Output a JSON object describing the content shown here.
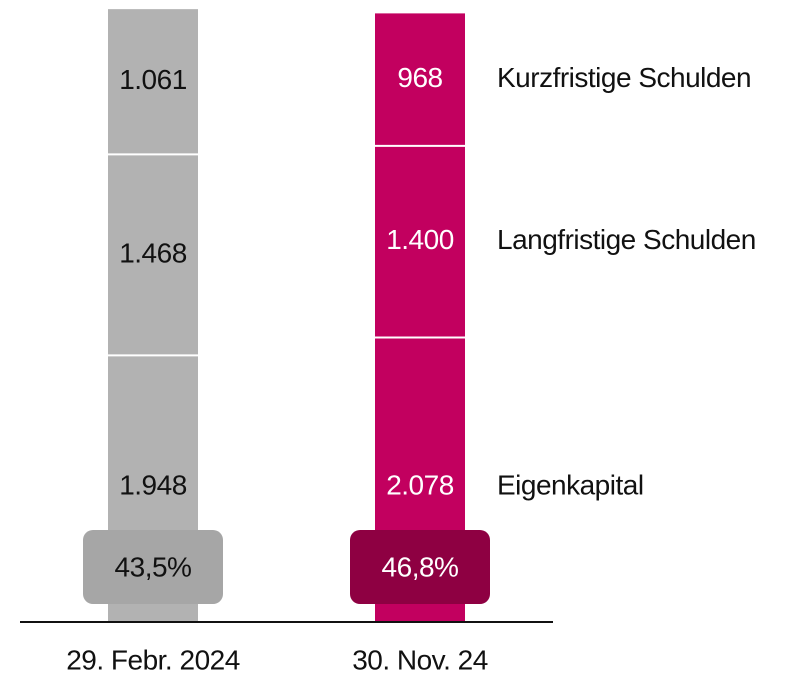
{
  "chart_data": {
    "type": "stacked_bar",
    "categories": [
      "29. Febr. 2024",
      "30. Nov. 24"
    ],
    "category_colors": [
      "#b2b2b2",
      "#c2005f"
    ],
    "badge_colors": [
      "#a6a6a6",
      "#8e0042"
    ],
    "series": [
      {
        "name": "Eigenkapital",
        "values": [
          1948,
          2078
        ],
        "value_labels": [
          "1.948",
          "2.078"
        ]
      },
      {
        "name": "Langfristige Schulden",
        "values": [
          1468,
          1400
        ],
        "value_labels": [
          "1.468",
          "1.400"
        ]
      },
      {
        "name": "Kurzfristige Schulden",
        "values": [
          1061,
          968
        ],
        "value_labels": [
          "1.061",
          "968"
        ]
      }
    ],
    "ratios": [
      {
        "value": 43.5,
        "label": "43,5%"
      },
      {
        "value": 46.8,
        "label": "46,8%"
      }
    ],
    "ylim": [
      0,
      4500
    ]
  }
}
